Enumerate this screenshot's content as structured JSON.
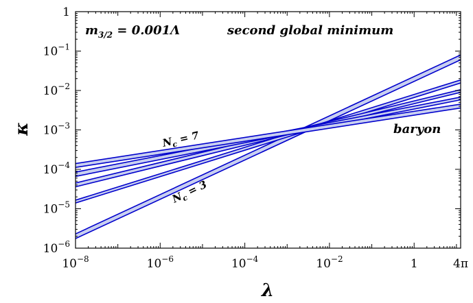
{
  "chart_data": {
    "type": "line",
    "xlabel": "λ",
    "ylabel": "κ",
    "xscale": "log",
    "yscale": "log",
    "xlim": [
      1e-08,
      12.566
    ],
    "ylim": [
      1e-06,
      1
    ],
    "x_ticks": [
      {
        "value": 1e-08,
        "base": "10",
        "exp": "−8"
      },
      {
        "value": 1e-06,
        "base": "10",
        "exp": "−6"
      },
      {
        "value": 0.0001,
        "base": "10",
        "exp": "−4"
      },
      {
        "value": 0.01,
        "base": "10",
        "exp": "−2"
      },
      {
        "value": 1,
        "base": "1",
        "exp": ""
      },
      {
        "value": 12.566,
        "base": "4π",
        "exp": ""
      }
    ],
    "y_ticks": [
      {
        "value": 1e-06,
        "base": "10",
        "exp": "−6"
      },
      {
        "value": 1e-05,
        "base": "10",
        "exp": "−5"
      },
      {
        "value": 0.0001,
        "base": "10",
        "exp": "−4"
      },
      {
        "value": 0.001,
        "base": "10",
        "exp": "−3"
      },
      {
        "value": 0.01,
        "base": "10",
        "exp": "−2"
      },
      {
        "value": 0.1,
        "base": "10",
        "exp": "−1"
      },
      {
        "value": 1,
        "base": "1",
        "exp": ""
      }
    ],
    "annotations": {
      "mass": "m3/2 = 0.001Λ",
      "mass_main": "m",
      "mass_sub": "3/2",
      "mass_rest": " = 0.001Λ",
      "minimum": "second global minimum",
      "baryon": "baryon",
      "nc7_main": "N",
      "nc7_sub": "c",
      "nc7_rest": " = 7",
      "nc3_main": "N",
      "nc3_sub": "c",
      "nc3_rest": " = 3"
    },
    "line_color": "#0000cc",
    "band_color": "#c8cff0",
    "bands": [
      {
        "nc": 3,
        "upper": [
          [
            1e-08,
            2.3e-06
          ],
          [
            12.566,
            0.08
          ]
        ],
        "lower": [
          [
            1e-08,
            1.75e-06
          ],
          [
            12.566,
            0.06
          ]
        ]
      },
      {
        "nc": 4,
        "upper": [
          [
            1e-08,
            1.65e-05
          ],
          [
            12.566,
            0.0185
          ]
        ],
        "lower": [
          [
            1e-08,
            1.4e-05
          ],
          [
            12.566,
            0.0155
          ]
        ]
      },
      {
        "nc": 5,
        "upper": [
          [
            1e-08,
            4.5e-05
          ],
          [
            12.566,
            0.0105
          ]
        ],
        "lower": [
          [
            1e-08,
            3.6e-05
          ],
          [
            12.566,
            0.009
          ]
        ]
      },
      {
        "nc": 6,
        "upper": [
          [
            1e-08,
            8.5e-05
          ],
          [
            12.566,
            0.0068
          ]
        ],
        "lower": [
          [
            1e-08,
            6.6e-05
          ],
          [
            12.566,
            0.0058
          ]
        ]
      },
      {
        "nc": 7,
        "upper": [
          [
            1e-08,
            0.00014
          ],
          [
            12.566,
            0.0045
          ]
        ],
        "lower": [
          [
            1e-08,
            0.000112
          ],
          [
            12.566,
            0.0036
          ]
        ]
      }
    ]
  }
}
